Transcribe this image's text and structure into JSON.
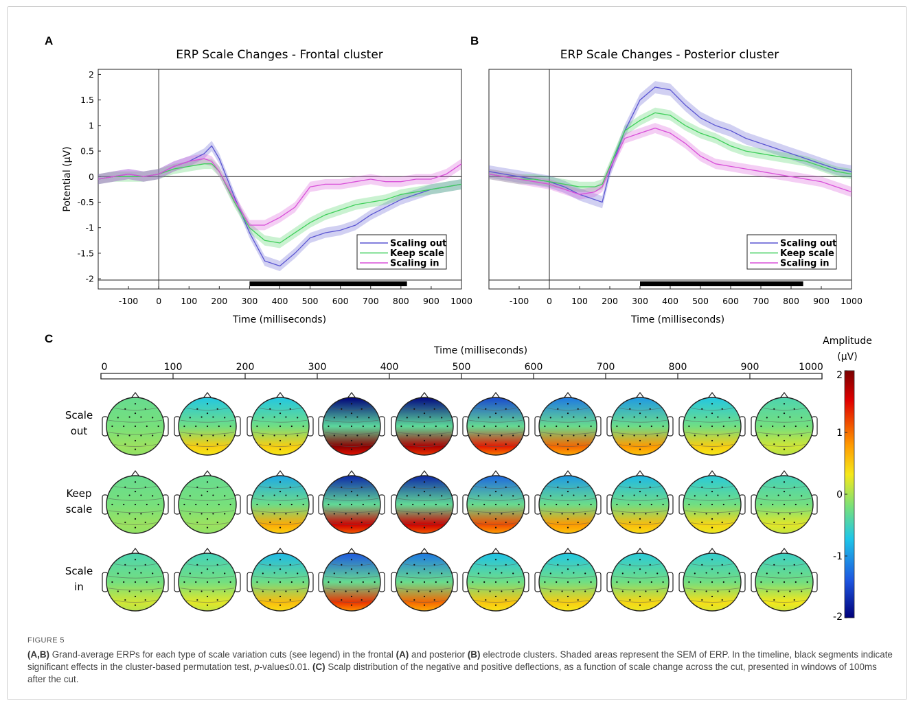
{
  "figure": {
    "label": "FIGURE 5",
    "caption_runs": [
      {
        "b": true,
        "t": "(A,B)"
      },
      {
        "b": false,
        "t": " Grand-average ERPs for each type of scale variation cuts (see legend) in the frontal "
      },
      {
        "b": true,
        "t": "(A)"
      },
      {
        "b": false,
        "t": " and posterior "
      },
      {
        "b": true,
        "t": "(B)"
      },
      {
        "b": false,
        "t": " electrode clusters. Shaded areas represent the SEM of ERP. In the timeline, black segments indicate significant effects in the cluster-based permutation test, "
      },
      {
        "i": true,
        "t": "p"
      },
      {
        "b": false,
        "t": "-value≤0.01. "
      },
      {
        "b": true,
        "t": "(C)"
      },
      {
        "b": false,
        "t": " Scalp distribution of the negative and positive deflections, as a function of scale change across the cut, presented in windows of 100ms after the cut."
      }
    ]
  },
  "panel_labels": {
    "a": "A",
    "b": "B",
    "c": "C"
  },
  "colors": {
    "scaling_out": "#5a55d2",
    "keep_scale": "#3fcf5a",
    "scaling_in": "#d84fd8"
  },
  "chart_data": [
    {
      "type": "line",
      "panel": "A",
      "title": "ERP Scale Changes  - Frontal cluster",
      "xlabel": "Time (milliseconds)",
      "ylabel": "Potential (µV)",
      "xlim": [
        -200,
        1000
      ],
      "ylim": [
        -2.2,
        2.1
      ],
      "xticks": [
        -100,
        0,
        100,
        200,
        300,
        400,
        500,
        600,
        700,
        800,
        900,
        1000
      ],
      "yticks": [
        2,
        1.5,
        1,
        0.5,
        0,
        -0.5,
        -1,
        -1.5,
        -2
      ],
      "legend": "bottom-right",
      "significant_segment": [
        300,
        820
      ],
      "series": [
        {
          "name": "Scaling out",
          "key": "scaling_out",
          "x": [
            -200,
            -150,
            -100,
            -50,
            0,
            50,
            100,
            150,
            175,
            200,
            250,
            300,
            350,
            400,
            450,
            500,
            550,
            600,
            650,
            700,
            750,
            800,
            850,
            900,
            950,
            1000
          ],
          "y": [
            -0.05,
            0.0,
            0.05,
            0.0,
            0.05,
            0.2,
            0.3,
            0.45,
            0.6,
            0.35,
            -0.4,
            -1.1,
            -1.65,
            -1.75,
            -1.5,
            -1.2,
            -1.1,
            -1.05,
            -0.95,
            -0.75,
            -0.6,
            -0.45,
            -0.35,
            -0.25,
            -0.2,
            -0.15
          ],
          "sem": 0.1
        },
        {
          "name": "Keep scale",
          "key": "keep_scale",
          "x": [
            -200,
            -150,
            -100,
            -50,
            0,
            50,
            100,
            150,
            175,
            200,
            250,
            300,
            350,
            400,
            450,
            500,
            550,
            600,
            650,
            700,
            750,
            800,
            850,
            900,
            950,
            1000
          ],
          "y": [
            -0.05,
            0.0,
            0.0,
            0.0,
            0.05,
            0.15,
            0.2,
            0.25,
            0.25,
            0.1,
            -0.5,
            -1.0,
            -1.25,
            -1.3,
            -1.1,
            -0.9,
            -0.75,
            -0.65,
            -0.55,
            -0.5,
            -0.45,
            -0.35,
            -0.3,
            -0.25,
            -0.2,
            -0.15
          ],
          "sem": 0.1
        },
        {
          "name": "Scaling in",
          "key": "scaling_in",
          "x": [
            -200,
            -150,
            -100,
            -50,
            0,
            50,
            100,
            150,
            175,
            200,
            250,
            300,
            350,
            400,
            450,
            500,
            550,
            600,
            650,
            700,
            750,
            800,
            850,
            900,
            950,
            1000
          ],
          "y": [
            -0.05,
            0.0,
            0.05,
            0.0,
            0.05,
            0.2,
            0.3,
            0.35,
            0.3,
            0.1,
            -0.45,
            -0.95,
            -0.95,
            -0.8,
            -0.6,
            -0.2,
            -0.15,
            -0.15,
            -0.1,
            -0.05,
            -0.1,
            -0.1,
            -0.05,
            -0.05,
            0.05,
            0.25
          ],
          "sem": 0.1
        }
      ]
    },
    {
      "type": "line",
      "panel": "B",
      "title": "ERP Scale Changes  - Posterior cluster",
      "xlabel": "Time (milliseconds)",
      "ylabel": "",
      "xlim": [
        -200,
        1000
      ],
      "ylim": [
        -2.2,
        2.1
      ],
      "xticks": [
        -100,
        0,
        100,
        200,
        300,
        400,
        500,
        600,
        700,
        800,
        900,
        1000
      ],
      "yticks": [],
      "legend": "bottom-right",
      "significant_segment": [
        300,
        840
      ],
      "series": [
        {
          "name": "Scaling out",
          "key": "scaling_out",
          "x": [
            -200,
            -150,
            -100,
            -50,
            0,
            50,
            100,
            150,
            175,
            200,
            250,
            300,
            350,
            400,
            450,
            500,
            550,
            600,
            650,
            700,
            750,
            800,
            850,
            900,
            950,
            1000
          ],
          "y": [
            0.1,
            0.05,
            0.0,
            -0.05,
            -0.1,
            -0.2,
            -0.35,
            -0.45,
            -0.5,
            0.1,
            0.9,
            1.5,
            1.75,
            1.7,
            1.4,
            1.15,
            1.0,
            0.9,
            0.75,
            0.65,
            0.55,
            0.45,
            0.35,
            0.25,
            0.15,
            0.1
          ],
          "sem": 0.12
        },
        {
          "name": "Keep scale",
          "key": "keep_scale",
          "x": [
            -200,
            -150,
            -100,
            -50,
            0,
            50,
            100,
            150,
            175,
            200,
            250,
            300,
            350,
            400,
            450,
            500,
            550,
            600,
            650,
            700,
            750,
            800,
            850,
            900,
            950,
            1000
          ],
          "y": [
            0.05,
            0.0,
            -0.05,
            -0.05,
            -0.1,
            -0.15,
            -0.2,
            -0.2,
            -0.15,
            0.2,
            0.9,
            1.1,
            1.25,
            1.2,
            1.0,
            0.85,
            0.75,
            0.6,
            0.5,
            0.45,
            0.4,
            0.35,
            0.3,
            0.2,
            0.1,
            0.05
          ],
          "sem": 0.1
        },
        {
          "name": "Scaling in",
          "key": "scaling_in",
          "x": [
            -200,
            -150,
            -100,
            -50,
            0,
            50,
            100,
            150,
            175,
            200,
            250,
            300,
            350,
            400,
            450,
            500,
            550,
            600,
            650,
            700,
            750,
            800,
            850,
            900,
            950,
            1000
          ],
          "y": [
            0.05,
            0.0,
            -0.05,
            -0.1,
            -0.15,
            -0.25,
            -0.35,
            -0.3,
            -0.2,
            0.15,
            0.75,
            0.85,
            0.95,
            0.85,
            0.65,
            0.4,
            0.25,
            0.2,
            0.15,
            0.1,
            0.05,
            0.0,
            -0.05,
            -0.1,
            -0.2,
            -0.3
          ],
          "sem": 0.1
        }
      ]
    },
    {
      "type": "heatmap",
      "panel": "C",
      "title": "Time (milliseconds)",
      "timeline_ticks": [
        0,
        100,
        200,
        300,
        400,
        500,
        600,
        700,
        800,
        900,
        1000
      ],
      "rows": [
        {
          "label_lines": [
            "Scale",
            "out"
          ],
          "values": [
            0.1,
            0.5,
            0.5,
            1.9,
            1.7,
            1.3,
            1.0,
            0.8,
            0.5,
            0.25
          ]
        },
        {
          "label_lines": [
            "Keep",
            "scale"
          ],
          "values": [
            0.1,
            0.1,
            0.7,
            1.5,
            1.5,
            1.1,
            0.8,
            0.6,
            0.45,
            0.3
          ]
        },
        {
          "label_lines": [
            "Scale",
            "in"
          ],
          "values": [
            0.25,
            0.3,
            0.6,
            1.2,
            1.0,
            0.55,
            0.5,
            0.45,
            0.4,
            0.35
          ]
        }
      ],
      "colorbar": {
        "label_lines": [
          "Amplitude",
          "(µV)"
        ],
        "ticks": [
          "2",
          "1",
          "0",
          "-1",
          "-2"
        ],
        "range": [
          -2,
          2
        ]
      }
    }
  ]
}
